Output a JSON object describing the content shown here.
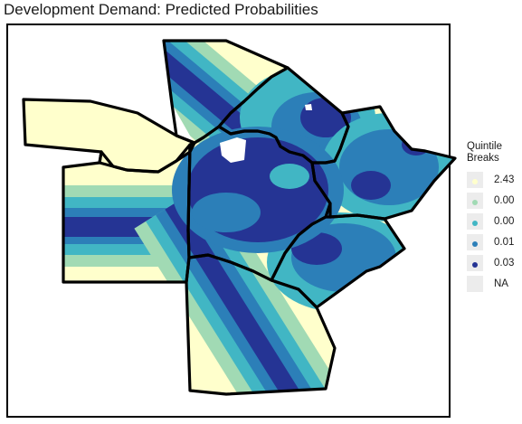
{
  "title": "Development Demand: Predicted Probabilities",
  "legend": {
    "title_line1": "Quintile",
    "title_line2": "Breaks",
    "items": [
      {
        "label": "2.43",
        "color": "#ffffcc"
      },
      {
        "label": "0.00",
        "color": "#a1dab4"
      },
      {
        "label": "0.00",
        "color": "#41b6c4"
      },
      {
        "label": "0.01",
        "color": "#2c7fb8"
      },
      {
        "label": "0.03",
        "color": "#253494"
      },
      {
        "label": "NA",
        "color": null
      }
    ]
  },
  "colors": {
    "q1": "#ffffcc",
    "q2": "#a1dab4",
    "q3": "#41b6c4",
    "q4": "#2c7fb8",
    "q5": "#253494",
    "border": "#000000",
    "na": "#ffffff"
  }
}
